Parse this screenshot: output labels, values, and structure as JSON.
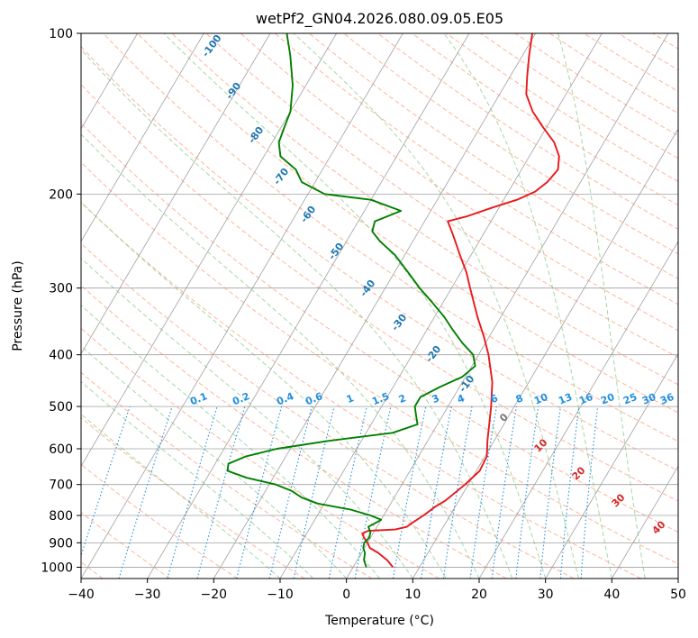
{
  "chart_data": {
    "type": "line",
    "title": "wetPf2_GN04.2026.080.09.05.E05",
    "xlabel": "Temperature (°C)",
    "ylabel": "Pressure (hPa)",
    "xlim": [
      -40,
      50
    ],
    "ylim": [
      1050,
      100
    ],
    "x_ticks": [
      -40,
      -30,
      -20,
      -10,
      0,
      10,
      20,
      30,
      40,
      50
    ],
    "y_ticks": [
      100,
      200,
      300,
      400,
      500,
      600,
      700,
      800,
      900,
      1000
    ],
    "skew_deg_per_decade": 47.5,
    "series": [
      {
        "name": "temperature",
        "color": "#e8191c",
        "points": [
          [
            1000,
            6
          ],
          [
            970,
            4.5
          ],
          [
            940,
            2.5
          ],
          [
            920,
            0.8
          ],
          [
            900,
            0
          ],
          [
            880,
            -1
          ],
          [
            865,
            -1.6
          ],
          [
            855,
            -1
          ],
          [
            850,
            3
          ],
          [
            840,
            4.5
          ],
          [
            825,
            5
          ],
          [
            800,
            6
          ],
          [
            770,
            7
          ],
          [
            750,
            8
          ],
          [
            700,
            9.5
          ],
          [
            660,
            10.5
          ],
          [
            620,
            10.3
          ],
          [
            580,
            9
          ],
          [
            540,
            7.8
          ],
          [
            500,
            6.5
          ],
          [
            450,
            4.5
          ],
          [
            400,
            1.5
          ],
          [
            370,
            -0.8
          ],
          [
            340,
            -3.5
          ],
          [
            300,
            -7.2
          ],
          [
            280,
            -9.2
          ],
          [
            260,
            -11.7
          ],
          [
            240,
            -14.3
          ],
          [
            225,
            -16.5
          ],
          [
            220,
            -14
          ],
          [
            212,
            -11
          ],
          [
            205,
            -8
          ],
          [
            198,
            -6
          ],
          [
            190,
            -5
          ],
          [
            180,
            -4.5
          ],
          [
            170,
            -5.5
          ],
          [
            160,
            -7.5
          ],
          [
            150,
            -10.5
          ],
          [
            140,
            -13.5
          ],
          [
            130,
            -16
          ],
          [
            120,
            -17.5
          ],
          [
            110,
            -19
          ],
          [
            100,
            -20.5
          ]
        ]
      },
      {
        "name": "dewpoint",
        "color": "#008000",
        "points": [
          [
            1000,
            2
          ],
          [
            970,
            1
          ],
          [
            940,
            0.5
          ],
          [
            920,
            -0.2
          ],
          [
            900,
            -0.5
          ],
          [
            880,
            -0.2
          ],
          [
            860,
            -0.5
          ],
          [
            840,
            -1.3
          ],
          [
            825,
            -0.5
          ],
          [
            815,
            0
          ],
          [
            800,
            -2
          ],
          [
            780,
            -5.5
          ],
          [
            760,
            -11
          ],
          [
            740,
            -14
          ],
          [
            720,
            -16
          ],
          [
            700,
            -19
          ],
          [
            680,
            -24
          ],
          [
            660,
            -27.5
          ],
          [
            640,
            -28
          ],
          [
            620,
            -26
          ],
          [
            600,
            -22
          ],
          [
            580,
            -15
          ],
          [
            560,
            -6
          ],
          [
            540,
            -3
          ],
          [
            520,
            -4
          ],
          [
            500,
            -5
          ],
          [
            480,
            -5
          ],
          [
            460,
            -3
          ],
          [
            440,
            -0.5
          ],
          [
            420,
            0.5
          ],
          [
            400,
            -0.8
          ],
          [
            380,
            -3.5
          ],
          [
            360,
            -6
          ],
          [
            340,
            -8.5
          ],
          [
            320,
            -11.5
          ],
          [
            300,
            -14.8
          ],
          [
            280,
            -18
          ],
          [
            260,
            -21.5
          ],
          [
            245,
            -25
          ],
          [
            235,
            -27
          ],
          [
            225,
            -27.5
          ],
          [
            215,
            -24.5
          ],
          [
            205,
            -30
          ],
          [
            200,
            -37.5
          ],
          [
            190,
            -42
          ],
          [
            180,
            -44
          ],
          [
            170,
            -47.5
          ],
          [
            160,
            -49
          ],
          [
            150,
            -49.5
          ],
          [
            140,
            -50
          ],
          [
            125,
            -52
          ],
          [
            110,
            -55
          ],
          [
            100,
            -57.5
          ]
        ]
      }
    ],
    "isotherm_labels": [
      "-100",
      "-90",
      "-80",
      "-70",
      "-60",
      "-50",
      "-40",
      "-30",
      "-20",
      "-10"
    ],
    "mixing_ratio_labels": [
      "0.1",
      "0.2",
      "0.4",
      "0.6",
      "1",
      "1.5",
      "2",
      "3",
      "4",
      "6",
      "8",
      "10",
      "13",
      "16",
      "20",
      "25",
      "30",
      "36"
    ],
    "mixing_ratio_values": [
      0.1,
      0.2,
      0.4,
      0.6,
      1,
      1.5,
      2,
      3,
      4,
      6,
      8,
      10,
      13,
      16,
      20,
      25,
      30,
      36
    ],
    "theta_e_labels": [
      "0",
      "10",
      "20",
      "30",
      "40"
    ],
    "colors": {
      "isotherm_label": "#1f77b4",
      "mixing_ratio": "#1f8fe0",
      "theta_e_label": "#d62728",
      "dry_adiabat": "#ff9b7a",
      "moist_adiabat": "#8fce8f",
      "grid": "#a0a0a0"
    }
  }
}
